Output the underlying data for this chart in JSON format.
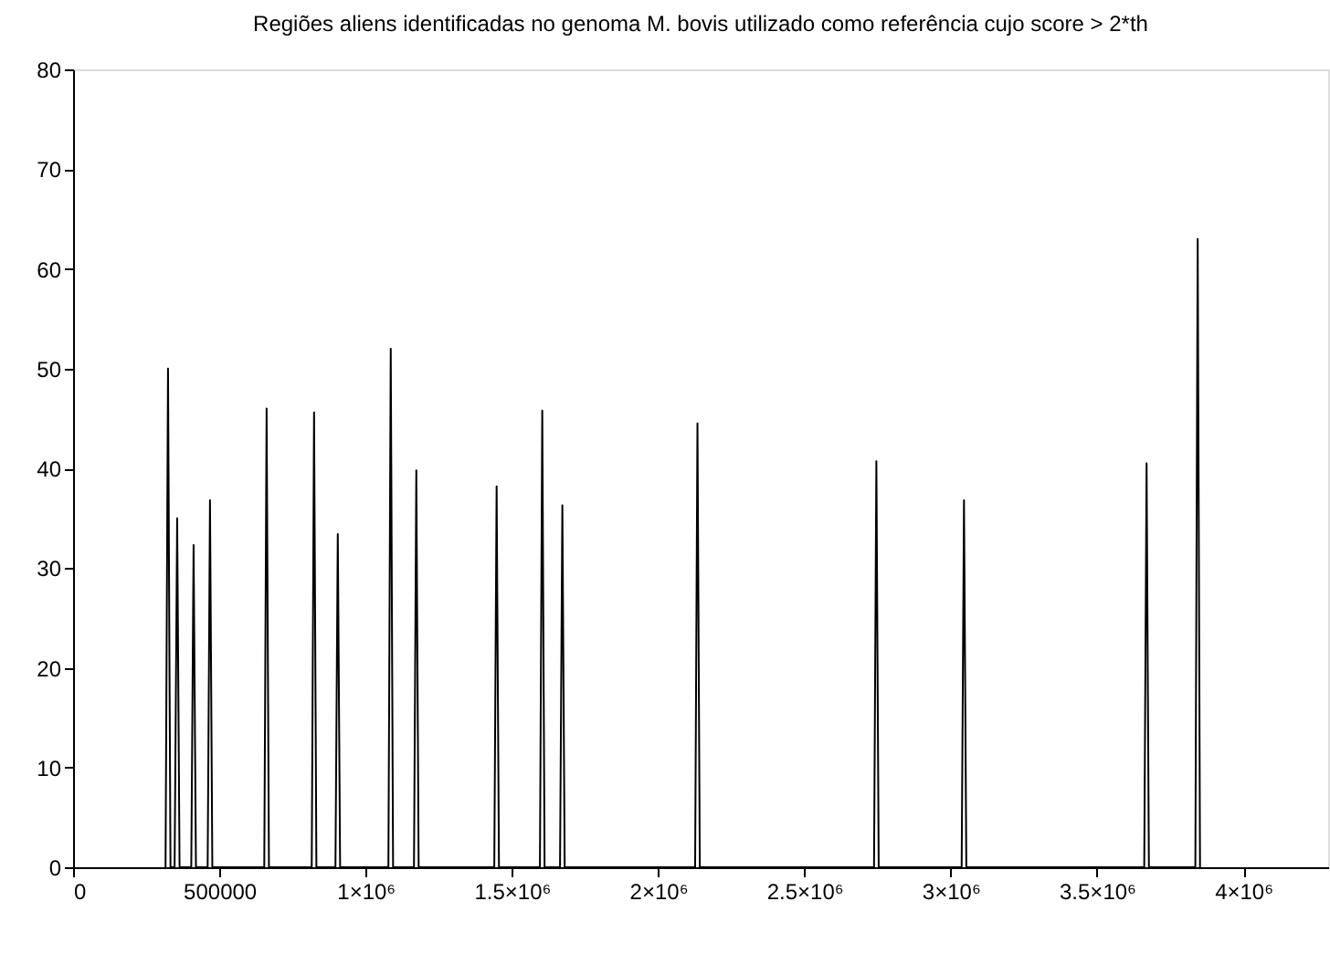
{
  "chart_data": {
    "type": "line",
    "title": "Regiões aliens identificadas no genoma M. bovis utilizado como referência cujo score > 2*th",
    "x": [
      316000,
      324500,
      333000,
      347000,
      355800,
      364000,
      404000,
      411900,
      420000,
      460000,
      468000,
      476000,
      653500,
      661500,
      669500,
      815700,
      823700,
      831700,
      896800,
      904800,
      912800,
      1077800,
      1085800,
      1093800,
      1165200,
      1173200,
      1181200,
      1439700,
      1447700,
      1455700,
      1595700,
      1603700,
      1611700,
      1664400,
      1672400,
      1680400,
      2126200,
      2134200,
      2142200,
      2737700,
      2745700,
      2753700,
      3037200,
      3045200,
      3053200,
      3661300,
      3669300,
      3677300,
      3836000,
      3844000,
      3852000
    ],
    "series": [
      {
        "color": "#000000",
        "values": [
          0,
          50,
          0,
          0,
          35,
          0,
          0,
          32.3,
          0,
          0,
          36.8,
          0,
          0,
          46,
          0,
          0,
          45.6,
          0,
          0,
          33.4,
          0,
          0,
          52,
          0,
          0,
          39.8,
          0,
          0,
          38.2,
          0,
          0,
          45.8,
          0,
          0,
          36.3,
          0,
          0,
          44.5,
          0,
          0,
          40.7,
          0,
          0,
          36.8,
          0,
          0,
          40.5,
          0,
          0,
          63,
          0
        ]
      }
    ],
    "xlim": [
      0,
      4290000
    ],
    "xticks": [
      0,
      500000,
      {
        "value": 1000000,
        "label": "1×10⁶"
      },
      {
        "value": 1500000,
        "label": "1.5×10⁶"
      },
      {
        "value": 2000000,
        "label": "2×10⁶"
      },
      {
        "value": 2500000,
        "label": "2.5×10⁶"
      },
      {
        "value": 3000000,
        "label": "3×10⁶"
      },
      {
        "value": 3500000,
        "label": "3.5×10⁶"
      },
      {
        "value": 4000000,
        "label": "4×10⁶"
      }
    ],
    "ylim": [
      0,
      80
    ],
    "yticks": [
      0,
      10,
      20,
      30,
      40,
      50,
      60,
      70,
      80
    ],
    "grid": false,
    "legend": false,
    "marker": "none",
    "line_style": "solid"
  }
}
